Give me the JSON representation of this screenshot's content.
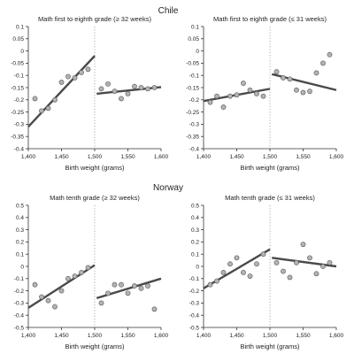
{
  "sections": [
    {
      "title": "Chile"
    },
    {
      "title": "Norway"
    }
  ],
  "colors": {
    "axis": "#333333",
    "fit_line": "#4a4a4a",
    "point_fill": "#b3b3b3",
    "point_stroke": "#555555",
    "cutoff_line": "#9a9a9a"
  },
  "chart_data": [
    {
      "type": "scatter",
      "title": "Math first to eighth grade (≥ 32 weeks)",
      "xlabel": "Birth weight (grams)",
      "ylabel": "",
      "xlim": [
        1400,
        1600
      ],
      "ylim": [
        -0.4,
        0.1
      ],
      "xticks": [
        1400,
        1450,
        1500,
        1550,
        1600
      ],
      "xticklabels": [
        "1,400",
        "1,450",
        "1,500",
        "1,550",
        "1,600"
      ],
      "yticks": [
        -0.4,
        -0.35,
        -0.3,
        -0.25,
        -0.2,
        -0.15,
        -0.1,
        -0.05,
        0,
        0.05,
        0.1
      ],
      "yticklabels": [
        "-0.4",
        "-0.35",
        "-0.3",
        "-0.25",
        "-0.2",
        "-0.15",
        "-0.1",
        "-0.05",
        "0",
        "0.05",
        "0.1"
      ],
      "cutoff": 1500,
      "points": [
        [
          1410,
          -0.195
        ],
        [
          1420,
          -0.245
        ],
        [
          1430,
          -0.235
        ],
        [
          1440,
          -0.2
        ],
        [
          1450,
          -0.128
        ],
        [
          1460,
          -0.105
        ],
        [
          1470,
          -0.11
        ],
        [
          1480,
          -0.088
        ],
        [
          1490,
          -0.075
        ],
        [
          1510,
          -0.155
        ],
        [
          1520,
          -0.135
        ],
        [
          1530,
          -0.165
        ],
        [
          1540,
          -0.195
        ],
        [
          1550,
          -0.175
        ],
        [
          1560,
          -0.145
        ],
        [
          1570,
          -0.15
        ],
        [
          1580,
          -0.155
        ],
        [
          1590,
          -0.15
        ]
      ],
      "fits": [
        {
          "x": [
            1400,
            1500
          ],
          "y": [
            -0.31,
            -0.02
          ]
        },
        {
          "x": [
            1503,
            1600
          ],
          "y": [
            -0.175,
            -0.148
          ]
        }
      ]
    },
    {
      "type": "scatter",
      "title": "Math first to eighth grade (≤ 31 weeks)",
      "xlabel": "Birth weight (grams)",
      "ylabel": "",
      "xlim": [
        1400,
        1600
      ],
      "ylim": [
        -0.4,
        0.1
      ],
      "xticks": [
        1400,
        1450,
        1500,
        1550,
        1600
      ],
      "xticklabels": [
        "1,400",
        "1,450",
        "1,500",
        "1,550",
        "1,600"
      ],
      "yticks": [
        -0.4,
        -0.35,
        -0.3,
        -0.25,
        -0.2,
        -0.15,
        -0.1,
        -0.05,
        0,
        0.05,
        0.1
      ],
      "yticklabels": [
        "-0.4",
        "-0.35",
        "-0.3",
        "-0.25",
        "-0.2",
        "-0.15",
        "-0.1",
        "-0.05",
        "0",
        "0.05",
        "0.1"
      ],
      "cutoff": 1500,
      "points": [
        [
          1410,
          -0.21
        ],
        [
          1420,
          -0.185
        ],
        [
          1430,
          -0.23
        ],
        [
          1440,
          -0.185
        ],
        [
          1450,
          -0.18
        ],
        [
          1460,
          -0.132
        ],
        [
          1470,
          -0.16
        ],
        [
          1480,
          -0.175
        ],
        [
          1490,
          -0.185
        ],
        [
          1510,
          -0.085
        ],
        [
          1520,
          -0.11
        ],
        [
          1530,
          -0.115
        ],
        [
          1540,
          -0.16
        ],
        [
          1550,
          -0.17
        ],
        [
          1560,
          -0.165
        ],
        [
          1570,
          -0.09
        ],
        [
          1580,
          -0.05
        ],
        [
          1590,
          -0.015
        ]
      ],
      "fits": [
        {
          "x": [
            1400,
            1500
          ],
          "y": [
            -0.205,
            -0.155
          ]
        },
        {
          "x": [
            1503,
            1600
          ],
          "y": [
            -0.095,
            -0.16
          ]
        }
      ]
    },
    {
      "type": "scatter",
      "title": "Math tenth grade (≥ 32 weeks)",
      "xlabel": "Birth weight (grams)",
      "ylabel": "",
      "xlim": [
        1400,
        1600
      ],
      "ylim": [
        -0.5,
        0.5
      ],
      "xticks": [
        1400,
        1450,
        1500,
        1550,
        1600
      ],
      "xticklabels": [
        "1,400",
        "1,450",
        "1,500",
        "1,550",
        "1,600"
      ],
      "yticks": [
        -0.5,
        -0.4,
        -0.3,
        -0.2,
        -0.1,
        0,
        0.1,
        0.2,
        0.3,
        0.4,
        0.5
      ],
      "yticklabels": [
        "-0.5",
        "-0.4",
        "-0.3",
        "-0.2",
        "-0.1",
        "0",
        "0.1",
        "0.2",
        "0.3",
        "0.4",
        "0.5"
      ],
      "cutoff": 1500,
      "points": [
        [
          1410,
          -0.15
        ],
        [
          1420,
          -0.25
        ],
        [
          1430,
          -0.28
        ],
        [
          1440,
          -0.33
        ],
        [
          1450,
          -0.2
        ],
        [
          1460,
          -0.1
        ],
        [
          1470,
          -0.08
        ],
        [
          1480,
          -0.05
        ],
        [
          1490,
          -0.01
        ],
        [
          1510,
          -0.3
        ],
        [
          1520,
          -0.22
        ],
        [
          1530,
          -0.15
        ],
        [
          1540,
          -0.15
        ],
        [
          1550,
          -0.22
        ],
        [
          1560,
          -0.16
        ],
        [
          1570,
          -0.18
        ],
        [
          1580,
          -0.16
        ],
        [
          1590,
          -0.35
        ]
      ],
      "fits": [
        {
          "x": [
            1400,
            1500
          ],
          "y": [
            -0.34,
            0.01
          ]
        },
        {
          "x": [
            1503,
            1600
          ],
          "y": [
            -0.26,
            -0.1
          ]
        }
      ]
    },
    {
      "type": "scatter",
      "title": "Math tenth grade (≤ 31 weeks)",
      "xlabel": "Birth weight (grams)",
      "ylabel": "",
      "xlim": [
        1400,
        1600
      ],
      "ylim": [
        -0.5,
        0.5
      ],
      "xticks": [
        1400,
        1450,
        1500,
        1550,
        1600
      ],
      "xticklabels": [
        "1,400",
        "1,450",
        "1,500",
        "1,550",
        "1,600"
      ],
      "yticks": [
        -0.5,
        -0.4,
        -0.3,
        -0.2,
        -0.1,
        0,
        0.1,
        0.2,
        0.3,
        0.4,
        0.5
      ],
      "yticklabels": [
        "-0.5",
        "-0.4",
        "-0.3",
        "-0.2",
        "-0.1",
        "0",
        "0.1",
        "0.2",
        "0.3",
        "0.4",
        "0.5"
      ],
      "cutoff": 1500,
      "points": [
        [
          1410,
          -0.15
        ],
        [
          1420,
          -0.12
        ],
        [
          1430,
          -0.05
        ],
        [
          1440,
          0.02
        ],
        [
          1450,
          0.07
        ],
        [
          1460,
          -0.05
        ],
        [
          1470,
          -0.08
        ],
        [
          1480,
          0.02
        ],
        [
          1490,
          0.1
        ],
        [
          1510,
          0.03
        ],
        [
          1520,
          -0.04
        ],
        [
          1530,
          -0.09
        ],
        [
          1540,
          0.03
        ],
        [
          1550,
          0.18
        ],
        [
          1560,
          0.07
        ],
        [
          1570,
          -0.06
        ],
        [
          1580,
          0.0
        ],
        [
          1590,
          0.03
        ]
      ],
      "fits": [
        {
          "x": [
            1400,
            1500
          ],
          "y": [
            -0.18,
            0.14
          ]
        },
        {
          "x": [
            1503,
            1600
          ],
          "y": [
            0.07,
            0.0
          ]
        }
      ]
    }
  ]
}
